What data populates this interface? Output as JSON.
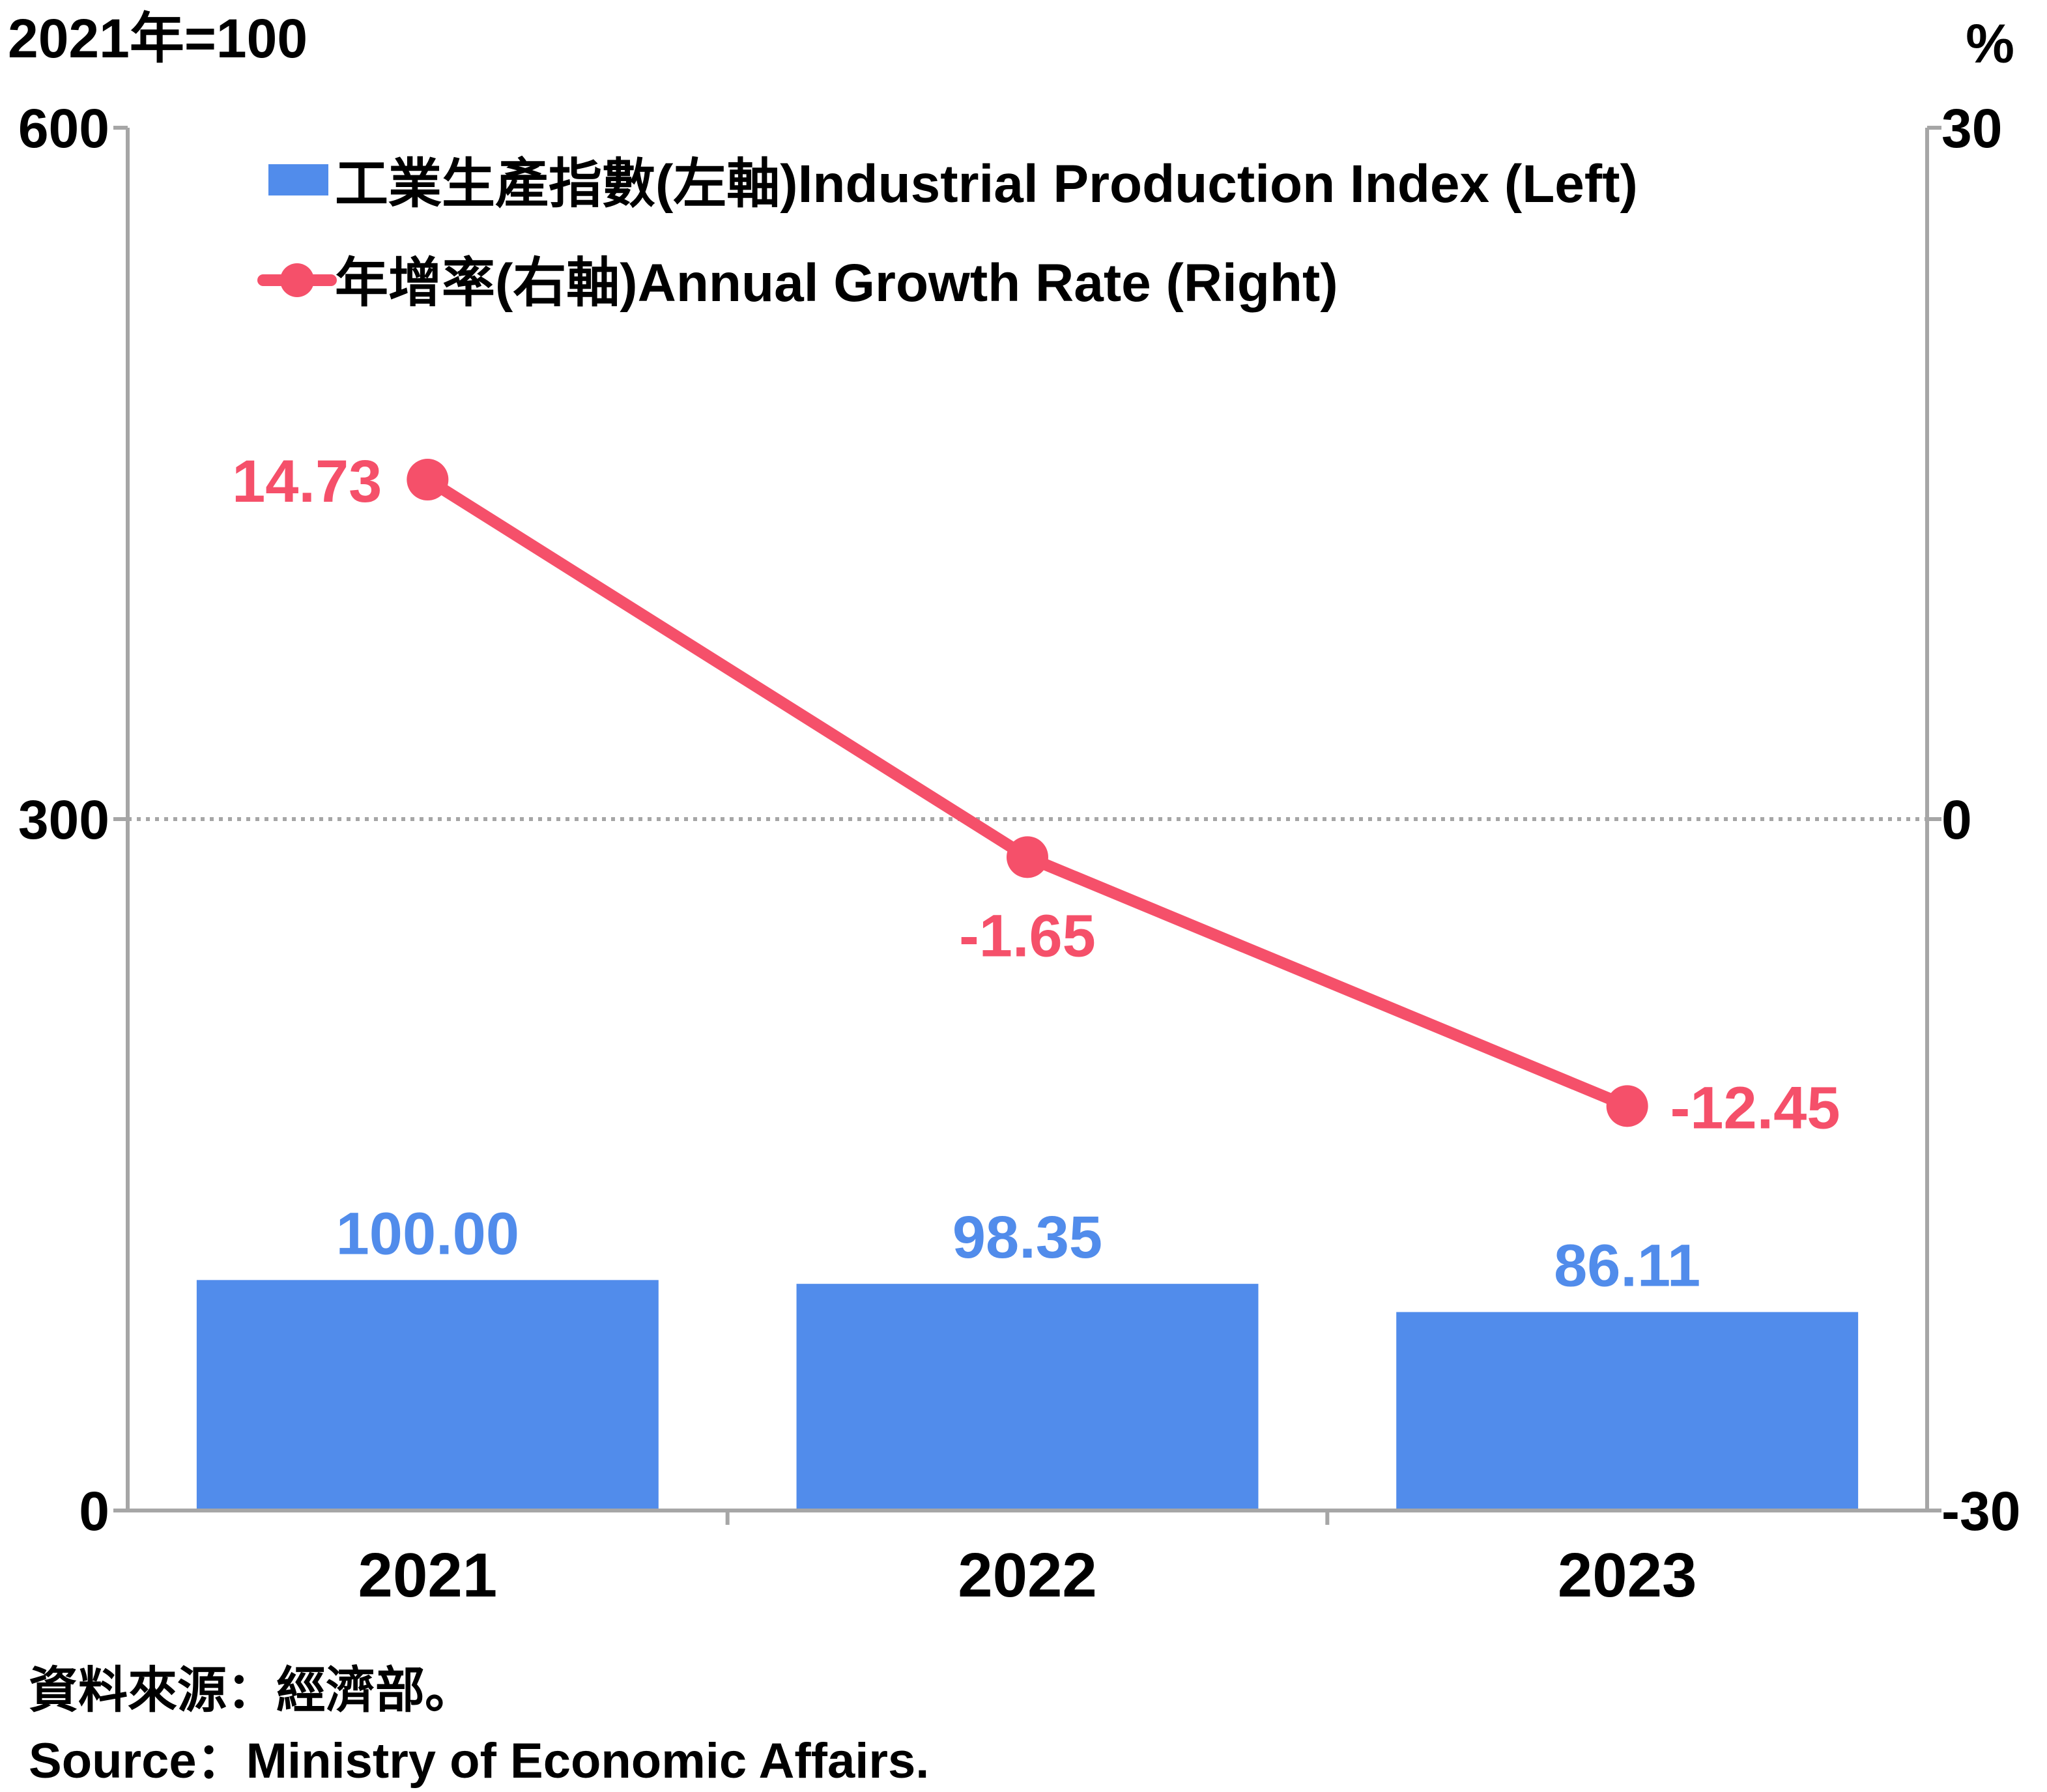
{
  "chart_data": {
    "type": "bar+line",
    "categories": [
      "2021",
      "2022",
      "2023"
    ],
    "left_axis": {
      "unit_label": "2021年=100",
      "min": 0,
      "max": 600,
      "ticks": [
        "0",
        "300",
        "600"
      ]
    },
    "right_axis": {
      "unit_label": "%",
      "min": -30,
      "max": 30,
      "ticks": [
        "-30",
        "0",
        "30"
      ]
    },
    "series": [
      {
        "name": "工業生產指數(左軸)Industrial Production Index (Left)",
        "type": "bar",
        "axis": "left",
        "values": [
          100.0,
          98.35,
          86.11
        ],
        "labels": [
          "100.00",
          "98.35",
          "86.11"
        ],
        "color": "#518CEB"
      },
      {
        "name": "年增率(右軸)Annual Growth Rate (Right)",
        "type": "line",
        "axis": "right",
        "values": [
          14.73,
          -1.65,
          -12.45
        ],
        "labels": [
          "14.73",
          "-1.65",
          "-12.45"
        ],
        "color": "#F5506A"
      }
    ],
    "legend_position": "top-left",
    "zero_line": "dotted"
  },
  "source": {
    "zh": "資料來源：經濟部。",
    "en": "Source：Ministry of Economic Affairs."
  },
  "colors": {
    "axis": "#A6A6A6",
    "text": "#000000"
  }
}
